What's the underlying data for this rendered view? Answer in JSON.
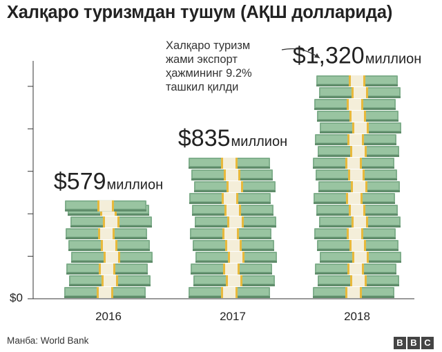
{
  "title": "Халқаро туризмдан тушум (АҚШ долларида)",
  "annotation": {
    "lines": [
      "Халқаро туризм",
      "жами экспорт",
      "ҳажмининг 9.2%",
      "ташкил қилди"
    ],
    "arrow_icon": "curved-arrow-icon"
  },
  "source": "Манба: World Bank",
  "logo": {
    "letters": [
      "B",
      "B",
      "C"
    ],
    "icon": "bbc-logo"
  },
  "colors": {
    "note_dark": "#5f8c6a",
    "note_mid": "#7fae8b",
    "note_light": "#a8cfae",
    "band_cream": "#f4eed9",
    "band_gold": "#e8b93c",
    "axis": "#333333"
  },
  "chart_data": {
    "type": "bar",
    "title": "Халқаро туризмдан тушум (АҚШ долларида)",
    "categories": [
      "2016",
      "2017",
      "2018"
    ],
    "values": [
      579,
      835,
      1320
    ],
    "value_prefix": "$",
    "value_unit": "миллион",
    "value_labels": [
      "$579",
      "$835",
      "$1,320"
    ],
    "ylim": [
      0,
      1400
    ],
    "y_tick_labels": [
      "$0"
    ],
    "xlabel": "",
    "ylabel": "",
    "grid": false,
    "legend": "none",
    "style": "stacked banknote bundles"
  }
}
